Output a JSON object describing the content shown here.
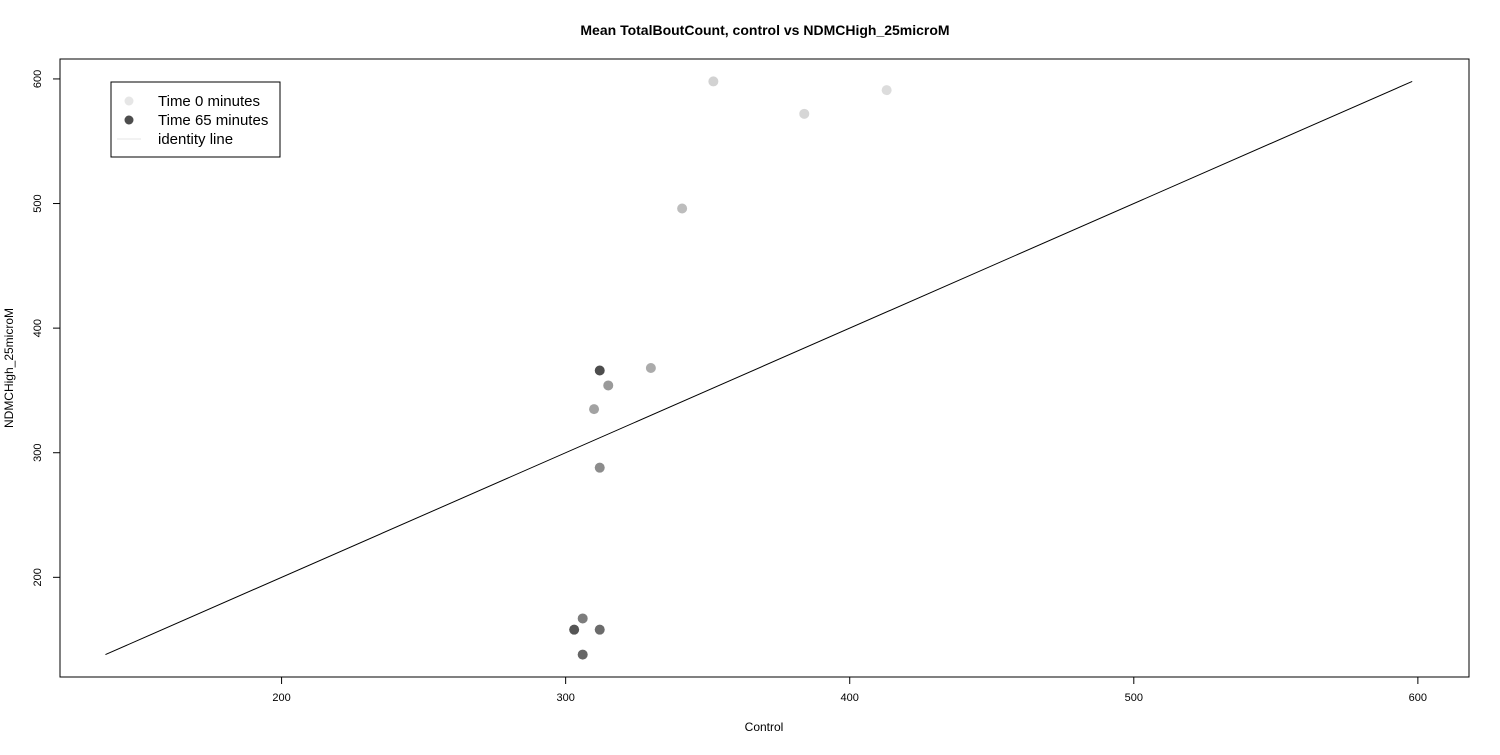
{
  "chart_data": {
    "type": "scatter",
    "title": "Mean TotalBoutCount, control vs NDMCHigh_25microM",
    "xlabel": "Control",
    "ylabel": "NDMCHigh_25microM",
    "xlim": [
      122,
      618
    ],
    "ylim": [
      120,
      616
    ],
    "x_ticks": [
      200,
      300,
      400,
      500,
      600
    ],
    "y_ticks": [
      200,
      300,
      400,
      500,
      600
    ],
    "grid": false,
    "legend": {
      "position": "top-left",
      "entries": [
        {
          "label": "Time 0 minutes",
          "kind": "point",
          "color": "#e6e6e6"
        },
        {
          "label": "Time 65 minutes",
          "kind": "point",
          "color": "#4d4d4d"
        },
        {
          "label": "identity line",
          "kind": "line",
          "color": "#e6e6e6"
        }
      ]
    },
    "identity_line": {
      "from": [
        138,
        138
      ],
      "to": [
        598,
        598
      ],
      "color": "#000000"
    },
    "points": [
      {
        "x": 352,
        "y": 598,
        "color": "#d2d2d2"
      },
      {
        "x": 413,
        "y": 591,
        "color": "#dcdcdc"
      },
      {
        "x": 384,
        "y": 572,
        "color": "#d6d6d6"
      },
      {
        "x": 341,
        "y": 496,
        "color": "#bdbdbd"
      },
      {
        "x": 330,
        "y": 368,
        "color": "#ababab"
      },
      {
        "x": 312,
        "y": 366,
        "color": "#4d4d4d"
      },
      {
        "x": 315,
        "y": 354,
        "color": "#9a9a9a"
      },
      {
        "x": 310,
        "y": 335,
        "color": "#a2a2a2"
      },
      {
        "x": 312,
        "y": 288,
        "color": "#8c8c8c"
      },
      {
        "x": 306,
        "y": 167,
        "color": "#7d7d7d"
      },
      {
        "x": 303,
        "y": 158,
        "color": "#555555"
      },
      {
        "x": 312,
        "y": 158,
        "color": "#6b6b6b"
      },
      {
        "x": 306,
        "y": 138,
        "color": "#666666"
      }
    ]
  }
}
